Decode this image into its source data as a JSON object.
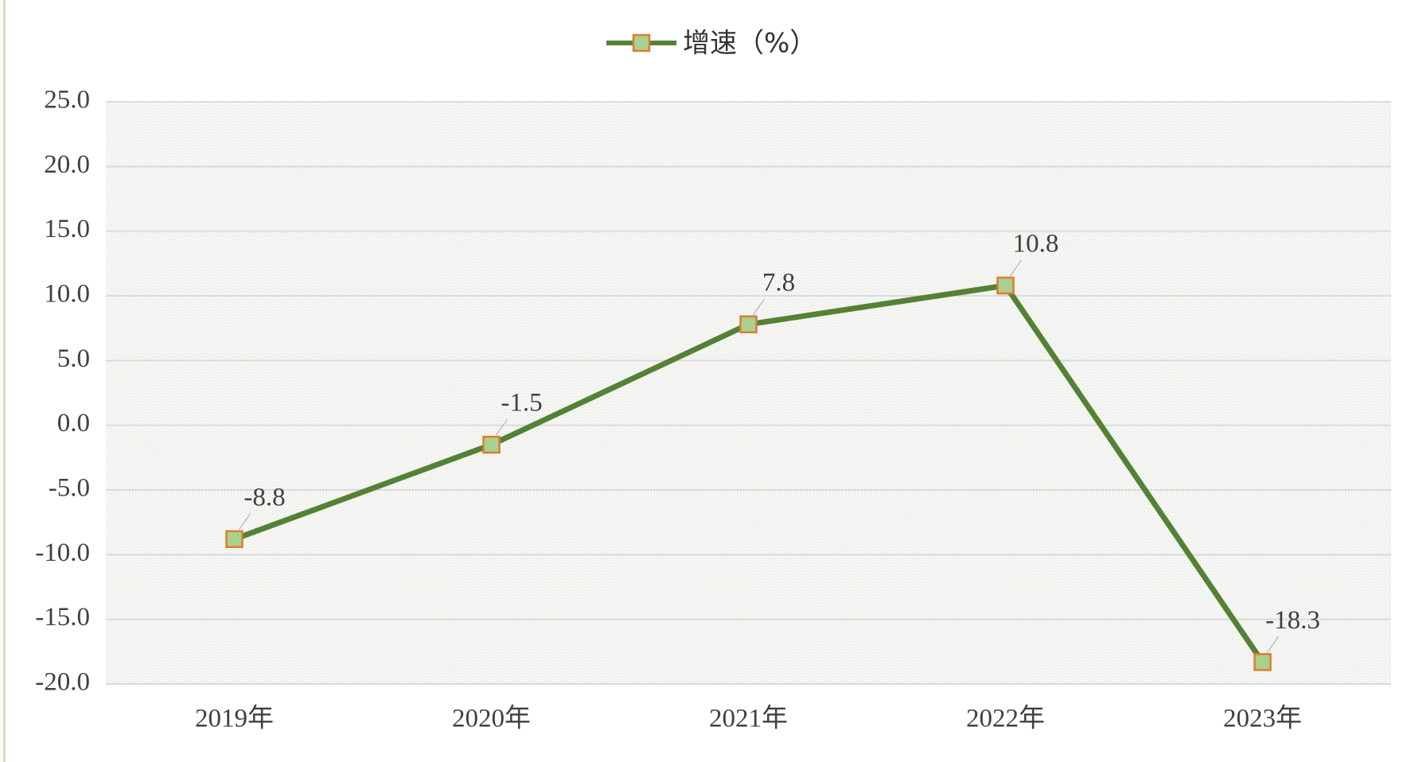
{
  "chart_data": {
    "type": "line",
    "categories": [
      "2019年",
      "2020年",
      "2021年",
      "2022年",
      "2023年"
    ],
    "series": [
      {
        "name": "增速（%）",
        "color": "#548235",
        "marker_fill": "#a9d18e",
        "marker_stroke": "#e07b2e",
        "values": [
          -8.8,
          -1.5,
          7.8,
          10.8,
          -18.3
        ]
      }
    ],
    "ylim": [
      -20,
      25
    ],
    "yticks": [
      {
        "value": -20,
        "label": "-20.0"
      },
      {
        "value": -15,
        "label": "-15.0"
      },
      {
        "value": -10,
        "label": "-10.0"
      },
      {
        "value": -5,
        "label": "-5.0"
      },
      {
        "value": 0,
        "label": "0.0"
      },
      {
        "value": 5,
        "label": "5.0"
      },
      {
        "value": 10,
        "label": "10.0"
      },
      {
        "value": 15,
        "label": "15.0"
      },
      {
        "value": 20,
        "label": "20.0"
      },
      {
        "value": 25,
        "label": "25.0"
      }
    ],
    "grid": true,
    "legend": "top"
  }
}
